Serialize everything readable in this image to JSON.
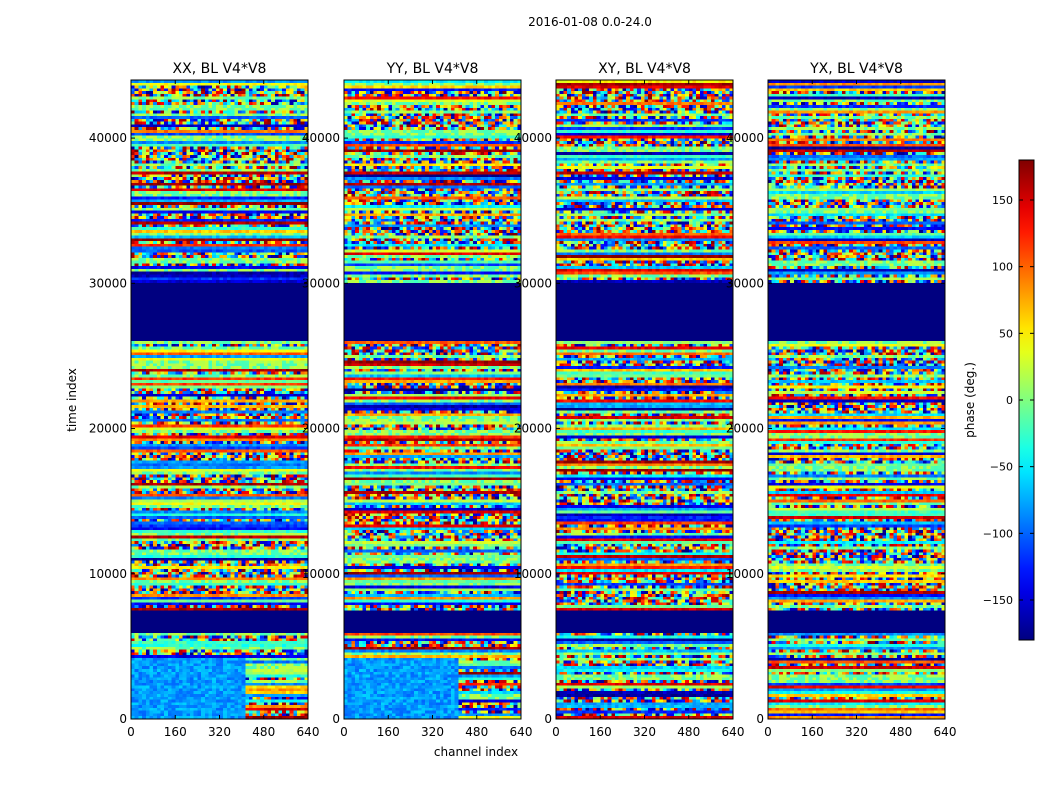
{
  "chart_data": {
    "type": "heatmap",
    "suptitle": "2016-01-08 0.0-24.0",
    "xlabel": "channel index",
    "ylabel": "time index",
    "xlim": [
      0,
      640
    ],
    "ylim": [
      0,
      44000
    ],
    "xticks": [
      0,
      160,
      320,
      480,
      640
    ],
    "yticks": [
      0,
      10000,
      20000,
      30000,
      40000
    ],
    "colorbar": {
      "label": "phase (deg.)",
      "range": [
        -180,
        180
      ],
      "ticks": [
        -150,
        -100,
        -50,
        0,
        50,
        100,
        150
      ],
      "colormap": "jet"
    },
    "panels": [
      {
        "title": "XX, BL V4*V8",
        "seed": 11,
        "lowBlueUntil": 410,
        "lowTimeBand": [
          0,
          4300
        ]
      },
      {
        "title": "YY, BL V4*V8",
        "seed": 23,
        "lowBlueUntil": 410,
        "lowTimeBand": [
          0,
          4300
        ]
      },
      {
        "title": "XY, BL V4*V8",
        "seed": 37,
        "lowBlueUntil": 0,
        "lowTimeBand": [
          0,
          4300
        ]
      },
      {
        "title": "YX, BL V4*V8",
        "seed": 53,
        "lowBlueUntil": 0,
        "lowTimeBand": [
          0,
          4300
        ]
      }
    ],
    "flagged_time_ranges": [
      [
        6000,
        7500
      ],
      [
        26000,
        30000
      ]
    ],
    "flag_value": -180
  }
}
